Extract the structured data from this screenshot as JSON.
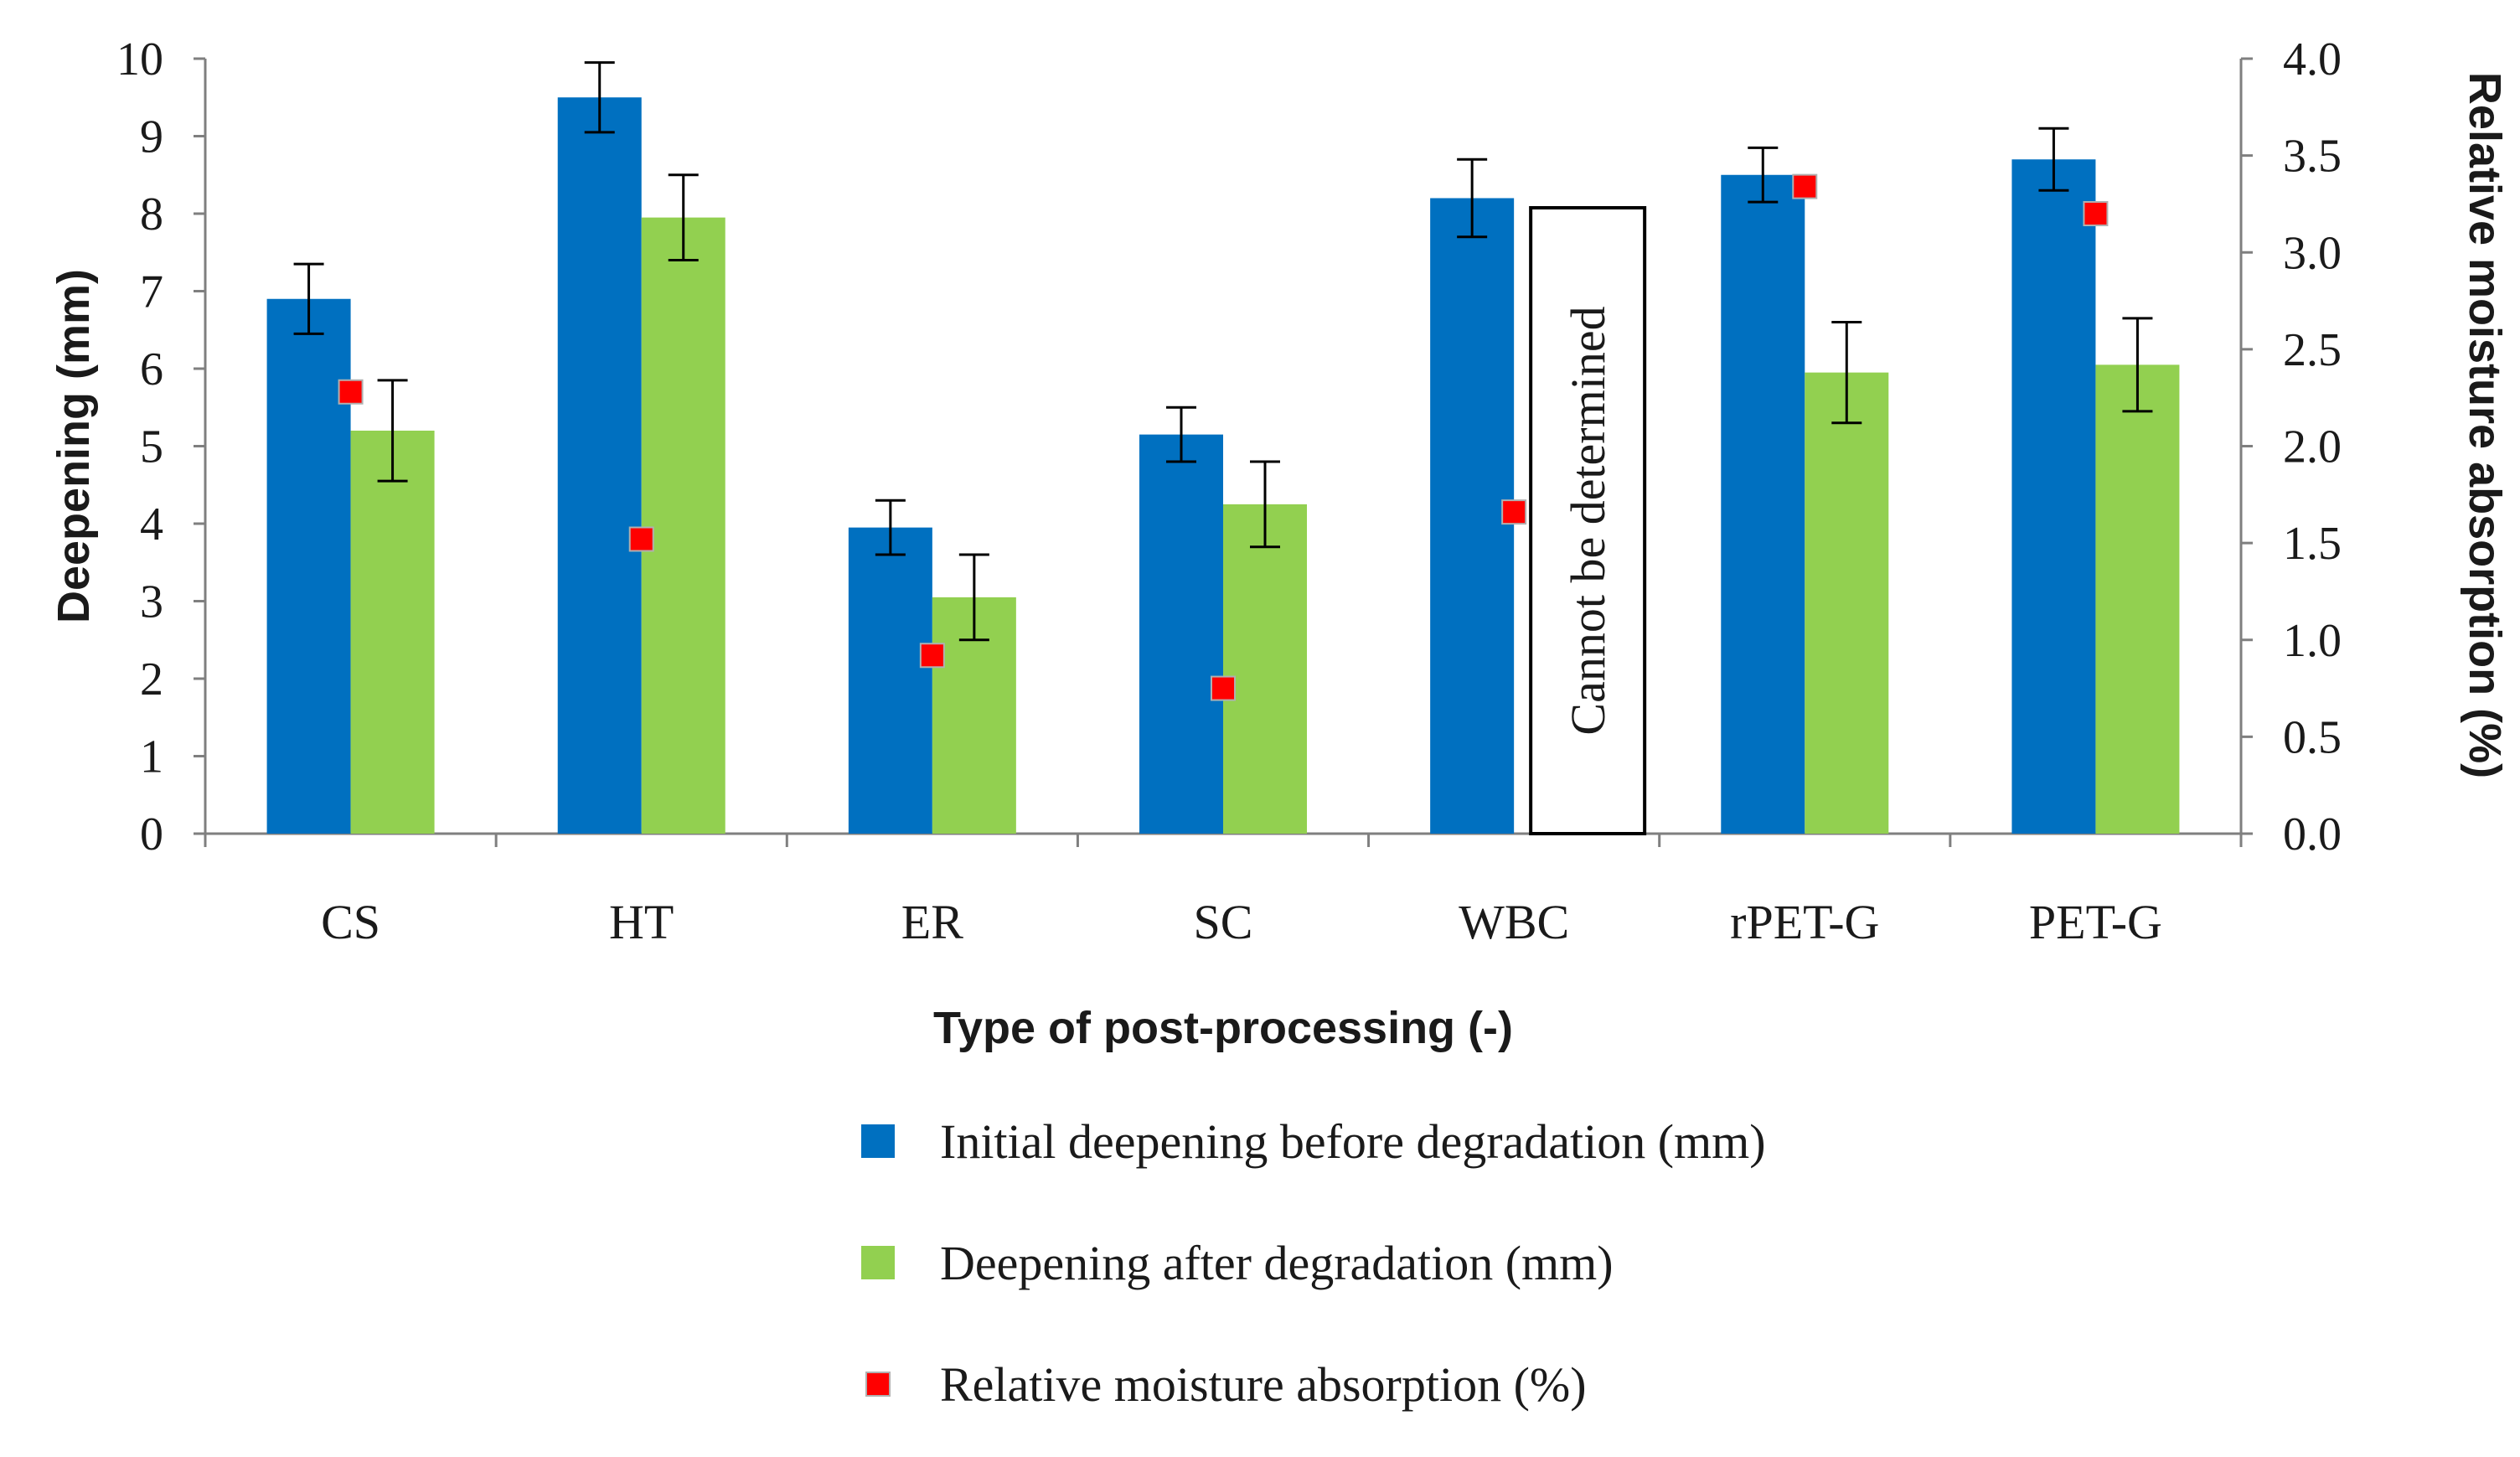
{
  "chart_data": {
    "type": "bar",
    "title": "",
    "categories": [
      "CS",
      "HT",
      "ER",
      "SC",
      "WBC",
      "rPET-G",
      "PET-G"
    ],
    "xlabel": "Type of post-processing (-)",
    "ylabel": "Deepening (mm)",
    "y2label": "Relative moisture absorption (%)",
    "ylim": [
      0,
      10
    ],
    "y2lim": [
      0,
      4
    ],
    "yticks": [
      "0",
      "1",
      "2",
      "3",
      "4",
      "5",
      "6",
      "7",
      "8",
      "9",
      "10"
    ],
    "y2ticks": [
      "0.0",
      "0.5",
      "1.0",
      "1.5",
      "2.0",
      "2.5",
      "3.0",
      "3.5",
      "4.0"
    ],
    "grid": false,
    "legend_position": "bottom",
    "series": [
      {
        "name": "Initial deepening before degradation (mm)",
        "kind": "bar",
        "axis": "left",
        "color": "#0070C0",
        "values": [
          6.9,
          9.5,
          3.95,
          5.15,
          8.2,
          8.5,
          8.7
        ],
        "errors": [
          0.45,
          0.45,
          0.35,
          0.35,
          0.5,
          0.35,
          0.4
        ]
      },
      {
        "name": "Deepening after degradation (mm)",
        "kind": "bar",
        "axis": "left",
        "color": "#92D050",
        "values": [
          5.2,
          7.95,
          3.05,
          4.25,
          null,
          5.95,
          6.05
        ],
        "errors": [
          0.65,
          0.55,
          0.55,
          0.55,
          null,
          0.65,
          0.6
        ]
      },
      {
        "name": "Relative moisture absorption (%)",
        "kind": "marker",
        "axis": "right",
        "color": "#FF0000",
        "values": [
          2.28,
          1.52,
          0.92,
          0.75,
          1.66,
          3.34,
          3.2
        ]
      }
    ],
    "annotations": [
      {
        "category": "WBC",
        "text": "Cannot be determined"
      }
    ]
  }
}
